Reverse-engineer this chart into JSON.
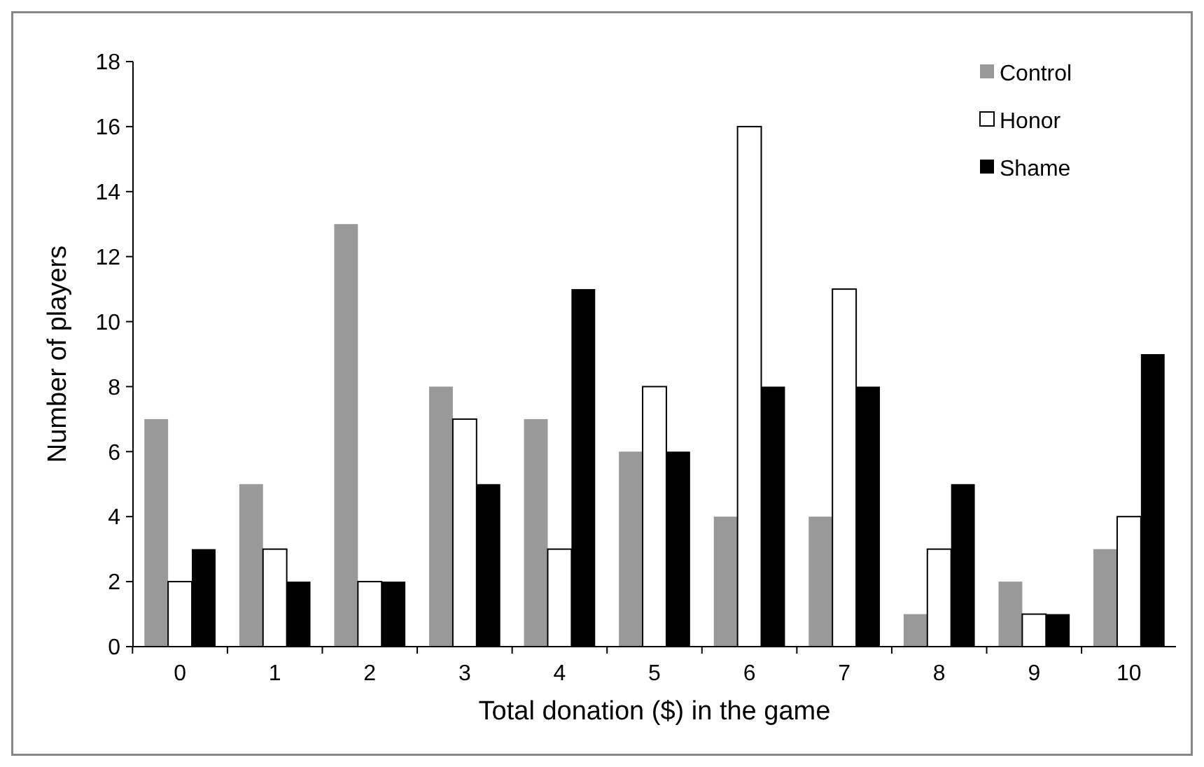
{
  "chart_data": {
    "type": "bar",
    "xlabel": "Total donation ($) in the game",
    "ylabel": "Number of players",
    "categories": [
      "0",
      "1",
      "2",
      "3",
      "4",
      "5",
      "6",
      "7",
      "8",
      "9",
      "10"
    ],
    "series": [
      {
        "name": "Control",
        "color": "#999999",
        "values": [
          7,
          5,
          13,
          8,
          7,
          6,
          4,
          4,
          1,
          2,
          3
        ]
      },
      {
        "name": "Honor",
        "color": "#ffffff",
        "values": [
          2,
          3,
          2,
          7,
          3,
          8,
          16,
          11,
          3,
          1,
          4
        ]
      },
      {
        "name": "Shame",
        "color": "#000000",
        "values": [
          3,
          2,
          2,
          5,
          11,
          6,
          8,
          8,
          5,
          1,
          9
        ]
      }
    ],
    "ylim": [
      0,
      18
    ],
    "yticks": [
      0,
      2,
      4,
      6,
      8,
      10,
      12,
      14,
      16,
      18
    ],
    "grid": false,
    "legend": "top right"
  }
}
